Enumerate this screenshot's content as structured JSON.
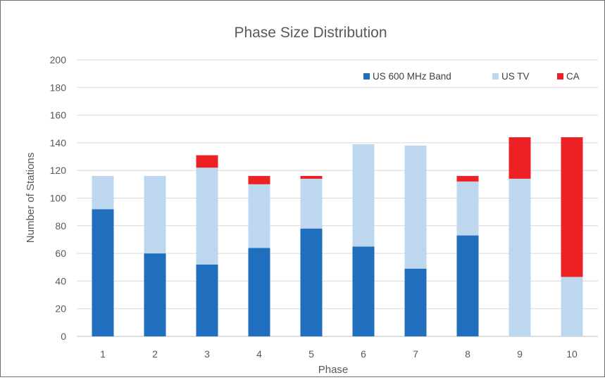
{
  "chart_data": {
    "type": "bar",
    "stacked": true,
    "title": "Phase Size Distribution",
    "xlabel": "Phase",
    "ylabel": "Number of Stations",
    "categories": [
      "1",
      "2",
      "3",
      "4",
      "5",
      "6",
      "7",
      "8",
      "9",
      "10"
    ],
    "ylim": [
      0,
      200
    ],
    "yticks": [
      "0",
      "20",
      "40",
      "60",
      "80",
      "100",
      "120",
      "140",
      "160",
      "180",
      "200"
    ],
    "grid": true,
    "legend_position": "top-right",
    "series": [
      {
        "name": "US 600 MHz Band",
        "color": "#1f6fbe",
        "values": [
          92,
          60,
          52,
          64,
          78,
          65,
          49,
          73,
          0,
          0
        ]
      },
      {
        "name": "US TV",
        "color": "#bdd7ee",
        "values": [
          24,
          56,
          70,
          46,
          36,
          74,
          89,
          39,
          114,
          43
        ]
      },
      {
        "name": "CA",
        "color": "#ed2024",
        "values": [
          0,
          0,
          9,
          6,
          2,
          0,
          0,
          4,
          30,
          101
        ]
      }
    ]
  }
}
